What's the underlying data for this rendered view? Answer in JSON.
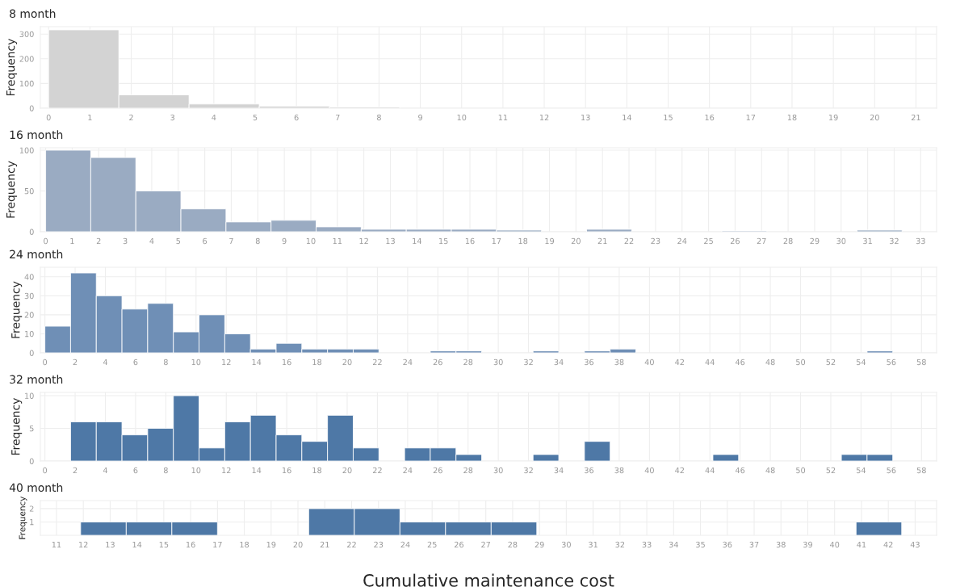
{
  "chart_data": [
    {
      "type": "histogram",
      "title": "8 month",
      "ylabel": "Frequency",
      "color": "#d3d3d3",
      "grid": true,
      "bins": [
        0,
        1.7,
        3.4,
        5.1,
        6.8,
        8.5
      ],
      "values": [
        317,
        54,
        17,
        8,
        5
      ],
      "xlim": [
        -0.2,
        21.5
      ],
      "xticks": [
        0,
        1,
        2,
        3,
        4,
        5,
        6,
        7,
        8,
        9,
        10,
        11,
        12,
        13,
        14,
        15,
        16,
        17,
        18,
        19,
        20,
        21
      ],
      "ylim": [
        0,
        330
      ],
      "yticks": [
        0,
        100,
        200,
        300
      ]
    },
    {
      "type": "histogram",
      "title": "16 month",
      "ylabel": "Frequency",
      "color": "#9aabc2",
      "grid": true,
      "bins": [
        0,
        1.7,
        3.4,
        5.1,
        6.8,
        8.5,
        10.2,
        11.9,
        13.6,
        15.3,
        17,
        18.7,
        20.4,
        22.1,
        23.8,
        25.5,
        27.2,
        28.9,
        30.6,
        32.3
      ],
      "values": [
        100,
        91,
        50,
        28,
        12,
        14,
        6,
        3,
        3,
        3,
        2,
        0,
        3,
        0,
        0,
        1,
        0,
        0,
        2
      ],
      "xlim": [
        -0.2,
        33.6
      ],
      "xticks": [
        0,
        1,
        2,
        3,
        4,
        5,
        6,
        7,
        8,
        9,
        10,
        11,
        12,
        13,
        14,
        15,
        16,
        17,
        18,
        19,
        20,
        21,
        22,
        23,
        24,
        25,
        26,
        27,
        28,
        29,
        30,
        31,
        32,
        33
      ],
      "ylim": [
        0,
        103
      ],
      "yticks": [
        0,
        50,
        100
      ]
    },
    {
      "type": "histogram",
      "title": "24 month",
      "ylabel": "Frequency",
      "color": "#6f8fb6",
      "grid": true,
      "bins": [
        0,
        1.7,
        3.4,
        5.1,
        6.8,
        8.5,
        10.2,
        11.9,
        13.6,
        15.3,
        17,
        18.7,
        20.4,
        22.1,
        23.8,
        25.5,
        27.2,
        28.9,
        30.6,
        32.3,
        34,
        35.7,
        37.4,
        39.1,
        40.8,
        42.5,
        44.2,
        45.9,
        47.6,
        49.3,
        51,
        52.7,
        54.4,
        56.1
      ],
      "values": [
        14,
        42,
        30,
        23,
        26,
        11,
        20,
        10,
        2,
        5,
        2,
        2,
        2,
        0,
        0,
        1,
        1,
        0,
        0,
        1,
        0,
        1,
        2,
        0,
        0,
        0,
        0,
        0,
        0,
        0,
        0,
        0,
        1
      ],
      "xlim": [
        -0.3,
        59
      ],
      "xticks": [
        0,
        2,
        4,
        6,
        8,
        10,
        12,
        14,
        16,
        18,
        20,
        22,
        24,
        26,
        28,
        30,
        32,
        34,
        36,
        38,
        40,
        42,
        44,
        46,
        48,
        50,
        52,
        54,
        56,
        58
      ],
      "ylim": [
        0,
        45
      ],
      "yticks": [
        0,
        10,
        20,
        30,
        40
      ]
    },
    {
      "type": "histogram",
      "title": "32 month",
      "ylabel": "Frequency",
      "color": "#4e78a6",
      "grid": true,
      "bins": [
        1.7,
        3.4,
        5.1,
        6.8,
        8.5,
        10.2,
        11.9,
        13.6,
        15.3,
        17,
        18.7,
        20.4,
        22.1,
        23.8,
        25.5,
        27.2,
        28.9,
        30.6,
        32.3,
        34,
        35.7,
        37.4,
        39.1,
        40.8,
        42.5,
        44.2,
        45.9,
        47.6,
        49.3,
        51,
        52.7,
        54.4,
        56.1
      ],
      "values": [
        6,
        6,
        4,
        5,
        10,
        2,
        6,
        7,
        4,
        3,
        7,
        2,
        0,
        2,
        2,
        1,
        0,
        0,
        1,
        0,
        3,
        0,
        0,
        0,
        0,
        1,
        0,
        0,
        0,
        0,
        1,
        1
      ],
      "xlim": [
        -0.3,
        59
      ],
      "xticks": [
        0,
        2,
        4,
        6,
        8,
        10,
        12,
        14,
        16,
        18,
        20,
        22,
        24,
        26,
        28,
        30,
        32,
        34,
        36,
        38,
        40,
        42,
        44,
        46,
        48,
        50,
        52,
        54,
        56,
        58
      ],
      "ylim": [
        0,
        10.5
      ],
      "yticks": [
        0,
        5,
        10
      ]
    },
    {
      "type": "histogram",
      "title": "40 month",
      "ylabel": "Frequency",
      "xlabel": "Cumulative maintenance cost",
      "color": "#4e78a6",
      "grid": true,
      "bins": [
        11.9,
        13.6,
        15.3,
        17,
        18.7,
        20.4,
        22.1,
        23.8,
        25.5,
        27.2,
        28.9,
        30.6,
        32.3,
        34,
        35.7,
        37.4,
        39.1,
        40.8,
        42.5
      ],
      "values": [
        1,
        1,
        1,
        0,
        0,
        2,
        2,
        1,
        1,
        1,
        0,
        0,
        0,
        0,
        0,
        0,
        0,
        1
      ],
      "xlim": [
        10.4,
        43.8
      ],
      "xticks": [
        11,
        12,
        13,
        14,
        15,
        16,
        17,
        18,
        19,
        20,
        21,
        22,
        23,
        24,
        25,
        26,
        27,
        28,
        29,
        30,
        31,
        32,
        33,
        34,
        35,
        36,
        37,
        38,
        39,
        40,
        41,
        42,
        43
      ],
      "ylim": [
        0,
        2.6
      ],
      "yticks": [
        1,
        2
      ]
    }
  ]
}
